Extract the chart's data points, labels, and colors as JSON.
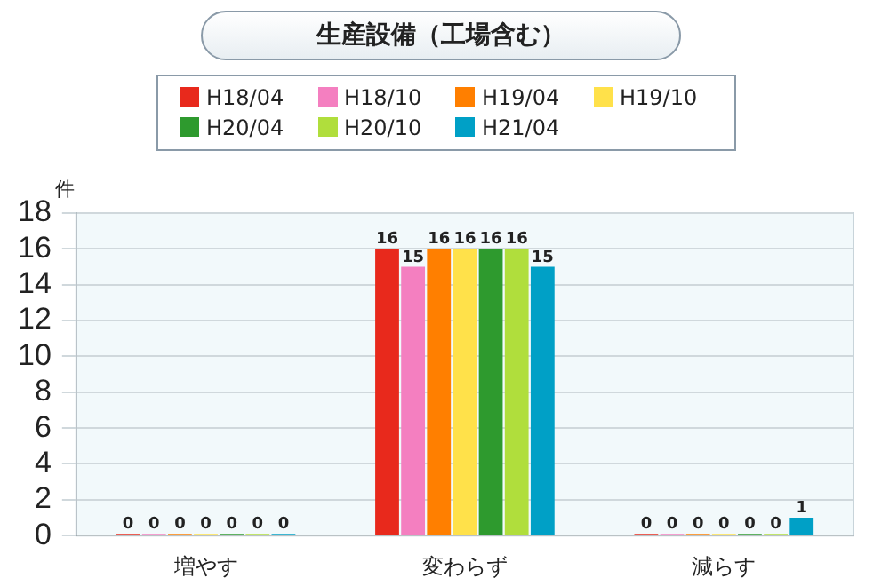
{
  "chart_data": {
    "type": "bar",
    "title": "生産設備（工場含む）",
    "ylabel": "件",
    "categories": [
      "増やす",
      "変わらず",
      "減らす"
    ],
    "series": [
      {
        "name": "H18/04",
        "color": "#e8291c",
        "values": [
          0,
          16,
          0
        ]
      },
      {
        "name": "H18/10",
        "color": "#f47fc0",
        "values": [
          0,
          15,
          0
        ]
      },
      {
        "name": "H19/04",
        "color": "#ff7f00",
        "values": [
          0,
          16,
          0
        ]
      },
      {
        "name": "H19/10",
        "color": "#ffe14a",
        "values": [
          0,
          16,
          0
        ]
      },
      {
        "name": "H20/04",
        "color": "#2e9a2e",
        "values": [
          0,
          16,
          0
        ]
      },
      {
        "name": "H20/10",
        "color": "#b0de3c",
        "values": [
          0,
          16,
          0
        ]
      },
      {
        "name": "H21/04",
        "color": "#00a0c6",
        "values": [
          0,
          15,
          1
        ]
      }
    ],
    "ylim": [
      0,
      18
    ],
    "yticks": [
      0,
      2,
      4,
      6,
      8,
      10,
      12,
      14,
      16,
      18
    ],
    "grid": "y",
    "legend": "top",
    "data_labels": true
  }
}
